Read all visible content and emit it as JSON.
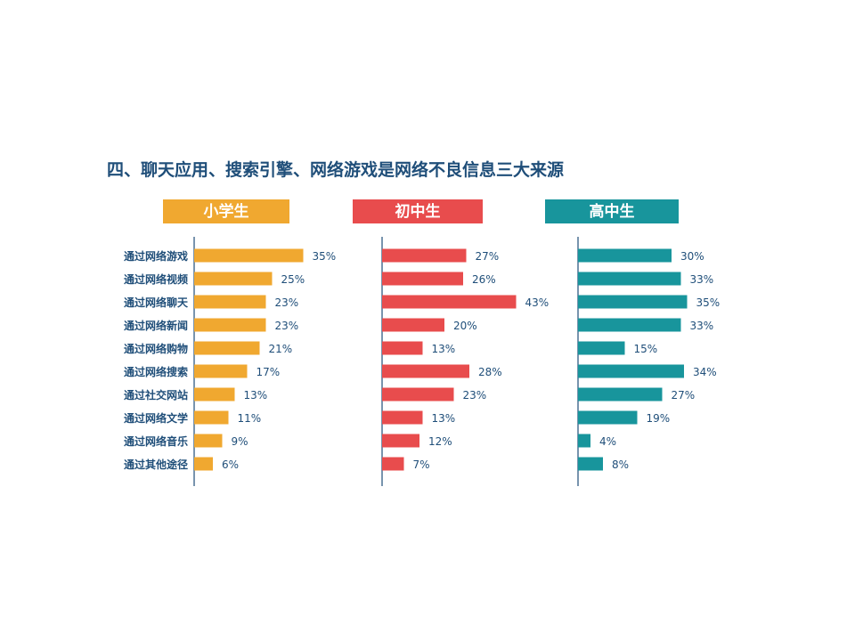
{
  "chart_data": {
    "type": "bar",
    "title": "四、聊天应用、搜索引擎、网络游戏是网络不良信息三大来源",
    "categories": [
      "通过网络游戏",
      "通过网络视频",
      "通过网络聊天",
      "通过网络新闻",
      "通过网络购物",
      "通过网络搜索",
      "通过社交网站",
      "通过网络文学",
      "通过网络音乐",
      "通过其他途径"
    ],
    "series": [
      {
        "name": "小学生",
        "color": "#f0a830",
        "values": [
          35,
          25,
          23,
          23,
          21,
          17,
          13,
          11,
          9,
          6
        ]
      },
      {
        "name": "初中生",
        "color": "#e84c4d",
        "values": [
          27,
          26,
          43,
          20,
          13,
          28,
          23,
          13,
          12,
          7
        ]
      },
      {
        "name": "高中生",
        "color": "#18959c",
        "values": [
          30,
          33,
          35,
          33,
          15,
          34,
          27,
          19,
          4,
          8
        ]
      }
    ],
    "value_suffix": "%",
    "xlim": [
      0,
      50
    ],
    "axis_color": "#1f4e79"
  }
}
